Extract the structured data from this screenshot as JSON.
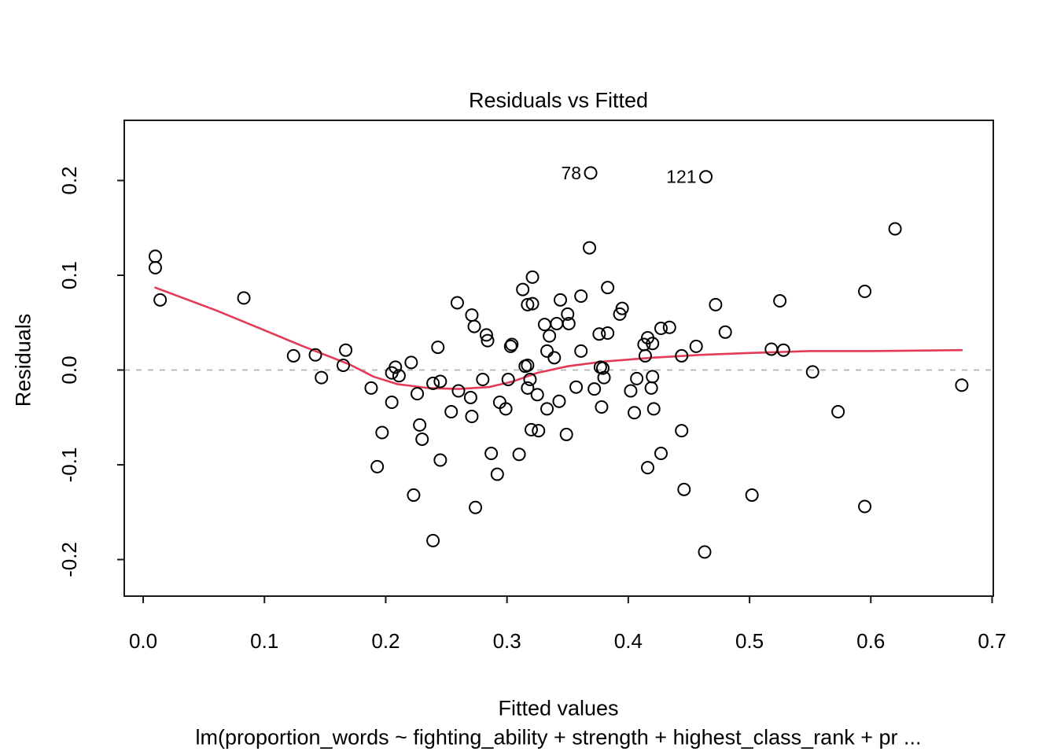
{
  "figure": {
    "title": "Residuals vs Fitted",
    "xlabel": "Fitted values",
    "ylabel": "Residuals",
    "caption": "lm(proportion_words ~ fighting_ability + strength + highest_class_rank + pr ..."
  },
  "colors": {
    "smoother_line": "#e23a57",
    "zero_line": "#b3b3b3",
    "point_stroke": "#000000",
    "box_stroke": "#1a1a1a",
    "text": "#000000"
  },
  "chart_data": {
    "type": "scatter",
    "title": "Residuals vs Fitted",
    "xlabel": "Fitted values",
    "ylabel": "Residuals",
    "sub_caption": "lm(proportion_words ~ fighting_ability + strength + highest_class_rank + pr ...",
    "x_ticks": [
      "0.0",
      "0.1",
      "0.2",
      "0.3",
      "0.4",
      "0.5",
      "0.6",
      "0.7"
    ],
    "x_tick_values": [
      0.0,
      0.1,
      0.2,
      0.3,
      0.4,
      0.5,
      0.6,
      0.7
    ],
    "y_ticks": [
      "-0.2",
      "-0.1",
      "0.0",
      "0.1",
      "0.2"
    ],
    "y_tick_values": [
      -0.2,
      -0.1,
      0.0,
      0.1,
      0.2
    ],
    "xlim": [
      -0.0156,
      0.701
    ],
    "ylim": [
      -0.2386,
      0.2635
    ],
    "grid": false,
    "legend": "none",
    "zero_line": {
      "y": 0,
      "style": "dashed"
    },
    "point_style": "open-circle",
    "labeled_points": [
      {
        "label": "78",
        "x": 0.369,
        "y": 0.208
      },
      {
        "label": "121",
        "x": 0.464,
        "y": 0.204
      }
    ],
    "points": [
      [
        0.01,
        0.12
      ],
      [
        0.01,
        0.108
      ],
      [
        0.014,
        0.074
      ],
      [
        0.083,
        0.076
      ],
      [
        0.124,
        0.015
      ],
      [
        0.142,
        0.016
      ],
      [
        0.167,
        0.021
      ],
      [
        0.165,
        0.005
      ],
      [
        0.147,
        -0.008
      ],
      [
        0.188,
        -0.019
      ],
      [
        0.205,
        -0.003
      ],
      [
        0.208,
        0.003
      ],
      [
        0.211,
        -0.006
      ],
      [
        0.221,
        0.008
      ],
      [
        0.205,
        -0.034
      ],
      [
        0.226,
        -0.025
      ],
      [
        0.197,
        -0.066
      ],
      [
        0.228,
        -0.058
      ],
      [
        0.23,
        -0.073
      ],
      [
        0.193,
        -0.102
      ],
      [
        0.223,
        -0.132
      ],
      [
        0.368,
        0.129
      ],
      [
        0.321,
        0.098
      ],
      [
        0.313,
        0.085
      ],
      [
        0.317,
        0.069
      ],
      [
        0.321,
        0.07
      ],
      [
        0.344,
        0.074
      ],
      [
        0.361,
        0.078
      ],
      [
        0.383,
        0.087
      ],
      [
        0.35,
        0.059
      ],
      [
        0.331,
        0.048
      ],
      [
        0.341,
        0.049
      ],
      [
        0.351,
        0.049
      ],
      [
        0.395,
        0.065
      ],
      [
        0.393,
        0.059
      ],
      [
        0.335,
        0.036
      ],
      [
        0.376,
        0.038
      ],
      [
        0.383,
        0.039
      ],
      [
        0.304,
        0.027
      ],
      [
        0.361,
        0.02
      ],
      [
        0.413,
        0.027
      ],
      [
        0.42,
        0.028
      ],
      [
        0.416,
        0.034
      ],
      [
        0.414,
        0.015
      ],
      [
        0.427,
        0.044
      ],
      [
        0.434,
        0.045
      ],
      [
        0.444,
        0.015
      ],
      [
        0.456,
        0.025
      ],
      [
        0.472,
        0.069
      ],
      [
        0.48,
        0.04
      ],
      [
        0.283,
        0.037
      ],
      [
        0.284,
        0.031
      ],
      [
        0.259,
        0.071
      ],
      [
        0.271,
        0.058
      ],
      [
        0.273,
        0.046
      ],
      [
        0.243,
        0.024
      ],
      [
        0.303,
        0.025
      ],
      [
        0.315,
        0.004
      ],
      [
        0.317,
        0.005
      ],
      [
        0.333,
        0.02
      ],
      [
        0.339,
        0.013
      ],
      [
        0.377,
        0.003
      ],
      [
        0.379,
        0.002
      ],
      [
        0.38,
        -0.008
      ],
      [
        0.42,
        -0.007
      ],
      [
        0.239,
        -0.014
      ],
      [
        0.245,
        -0.012
      ],
      [
        0.26,
        -0.022
      ],
      [
        0.28,
        -0.01
      ],
      [
        0.301,
        -0.01
      ],
      [
        0.27,
        -0.029
      ],
      [
        0.294,
        -0.034
      ],
      [
        0.299,
        -0.041
      ],
      [
        0.319,
        -0.01
      ],
      [
        0.317,
        -0.019
      ],
      [
        0.325,
        -0.026
      ],
      [
        0.357,
        -0.018
      ],
      [
        0.372,
        -0.02
      ],
      [
        0.333,
        -0.041
      ],
      [
        0.343,
        -0.033
      ],
      [
        0.378,
        -0.039
      ],
      [
        0.402,
        -0.022
      ],
      [
        0.407,
        -0.009
      ],
      [
        0.419,
        -0.019
      ],
      [
        0.405,
        -0.045
      ],
      [
        0.421,
        -0.041
      ],
      [
        0.254,
        -0.044
      ],
      [
        0.271,
        -0.049
      ],
      [
        0.32,
        -0.063
      ],
      [
        0.326,
        -0.064
      ],
      [
        0.349,
        -0.068
      ],
      [
        0.444,
        -0.064
      ],
      [
        0.245,
        -0.095
      ],
      [
        0.287,
        -0.088
      ],
      [
        0.31,
        -0.089
      ],
      [
        0.292,
        -0.11
      ],
      [
        0.427,
        -0.088
      ],
      [
        0.416,
        -0.103
      ],
      [
        0.446,
        -0.126
      ],
      [
        0.274,
        -0.145
      ],
      [
        0.239,
        -0.18
      ],
      [
        0.463,
        -0.192
      ],
      [
        0.62,
        0.149
      ],
      [
        0.595,
        0.083
      ],
      [
        0.525,
        0.073
      ],
      [
        0.518,
        0.022
      ],
      [
        0.528,
        0.021
      ],
      [
        0.552,
        -0.002
      ],
      [
        0.675,
        -0.016
      ],
      [
        0.573,
        -0.044
      ],
      [
        0.502,
        -0.132
      ],
      [
        0.595,
        -0.144
      ]
    ],
    "smoother": {
      "name": "lowess-fit",
      "points": [
        [
          0.01,
          0.087
        ],
        [
          0.06,
          0.063
        ],
        [
          0.1,
          0.042
        ],
        [
          0.13,
          0.026
        ],
        [
          0.15,
          0.016
        ],
        [
          0.17,
          0.006
        ],
        [
          0.19,
          -0.007
        ],
        [
          0.21,
          -0.015
        ],
        [
          0.235,
          -0.019
        ],
        [
          0.26,
          -0.02
        ],
        [
          0.285,
          -0.018
        ],
        [
          0.305,
          -0.012
        ],
        [
          0.325,
          -0.003
        ],
        [
          0.35,
          0.004
        ],
        [
          0.38,
          0.009
        ],
        [
          0.42,
          0.013
        ],
        [
          0.46,
          0.016
        ],
        [
          0.5,
          0.018
        ],
        [
          0.55,
          0.02
        ],
        [
          0.6,
          0.02
        ],
        [
          0.675,
          0.021
        ]
      ]
    }
  }
}
